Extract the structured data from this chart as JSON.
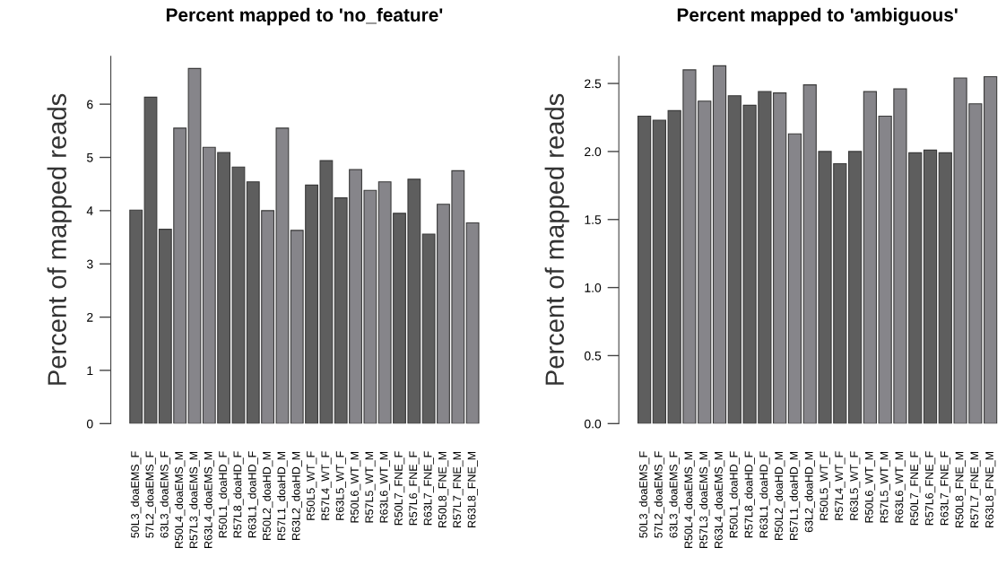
{
  "chart_data": [
    {
      "type": "bar",
      "title": "Percent mapped to 'no_feature'",
      "ylabel": "Percent of mapped reads",
      "categories": [
        "50L3_doaEMS_F",
        "57L2_doaEMS_F",
        "63L3_doaEMS_F",
        "R50L4_doaEMS_M",
        "R57L3_doaEMS_M",
        "R63L4_doaEMS_M",
        "R50L1_doaHD_F",
        "R57L8_doaHD_F",
        "R63L1_doaHD_F",
        "R50L2_doaHD_M",
        "R57L1_doaHD_M",
        "R63L2_doaHD_M",
        "R50L5_WT_F",
        "R57L4_WT_F",
        "R63L5_WT_F",
        "R50L6_WT_M",
        "R57L5_WT_M",
        "R63L6_WT_M",
        "R50L7_FNE_F",
        "R57L6_FNE_F",
        "R63L7_FNE_F",
        "R50L8_FNE_M",
        "R57L7_FNE_M",
        "R63L8_FNE_M"
      ],
      "values": [
        4.01,
        6.13,
        3.65,
        5.55,
        6.67,
        5.19,
        5.09,
        4.82,
        4.54,
        4.0,
        5.55,
        3.63,
        4.48,
        4.94,
        4.24,
        4.77,
        4.38,
        4.54,
        3.95,
        4.59,
        3.56,
        4.12,
        4.75,
        3.77
      ],
      "colors": [
        "#5e5e5e",
        "#5e5e5e",
        "#5e5e5e",
        "#86858a",
        "#86858a",
        "#86858a",
        "#5e5e5e",
        "#5e5e5e",
        "#5e5e5e",
        "#86858a",
        "#86858a",
        "#86858a",
        "#5e5e5e",
        "#5e5e5e",
        "#5e5e5e",
        "#86858a",
        "#86858a",
        "#86858a",
        "#5e5e5e",
        "#5e5e5e",
        "#5e5e5e",
        "#86858a",
        "#86858a",
        "#86858a"
      ],
      "ylim": [
        0,
        6.9
      ],
      "yticks": [
        0,
        1,
        2,
        3,
        4,
        5,
        6
      ],
      "grid": false,
      "legend": false
    },
    {
      "type": "bar",
      "title": "Percent mapped to 'ambiguous'",
      "ylabel": "Percent of mapped reads",
      "categories": [
        "50L3_doaEMS_F",
        "57L2_doaEMS_F",
        "63L3_doaEMS_F",
        "R50L4_doaEMS_M",
        "R57L3_doaEMS_M",
        "R63L4_doaEMS_M",
        "R50L1_doaHD_F",
        "R57L8_doaHD_F",
        "R63L1_doaHD_F",
        "R50L2_doaHD_M",
        "R57L1_doaHD_M",
        "63L2_doaHD_M",
        "R50L5_WT_F",
        "R57L4_WT_F",
        "R63L5_WT_F",
        "R50L6_WT_M",
        "R57L5_WT_M",
        "R63L6_WT_M",
        "R50L7_FNE_F",
        "R57L6_FNE_F",
        "R63L7_FNE_F",
        "R50L8_FNE_M",
        "R57L7_FNE_M",
        "R63L8_FNE_M"
      ],
      "values": [
        2.26,
        2.23,
        2.3,
        2.6,
        2.37,
        2.63,
        2.41,
        2.34,
        2.44,
        2.43,
        2.13,
        2.49,
        2.0,
        1.91,
        2.0,
        2.44,
        2.26,
        2.46,
        1.99,
        2.01,
        1.99,
        2.54,
        2.35,
        2.55
      ],
      "colors": [
        "#5e5e5e",
        "#5e5e5e",
        "#5e5e5e",
        "#86858a",
        "#86858a",
        "#86858a",
        "#5e5e5e",
        "#5e5e5e",
        "#5e5e5e",
        "#86858a",
        "#86858a",
        "#86858a",
        "#5e5e5e",
        "#5e5e5e",
        "#5e5e5e",
        "#86858a",
        "#86858a",
        "#86858a",
        "#5e5e5e",
        "#5e5e5e",
        "#5e5e5e",
        "#86858a",
        "#86858a",
        "#86858a"
      ],
      "ylim": [
        0,
        2.7
      ],
      "yticks": [
        {
          "value": 0,
          "label": "0.0"
        },
        0.5,
        {
          "value": 1,
          "label": "1.0"
        },
        1.5,
        {
          "value": 2,
          "label": "2.0"
        },
        2.5
      ],
      "grid": false,
      "legend": false
    }
  ]
}
